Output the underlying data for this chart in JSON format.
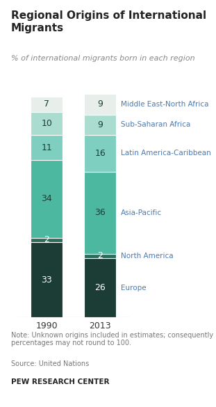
{
  "title": "Regional Origins of International\nMigrants",
  "subtitle": "% of international migrants born in each region",
  "years": [
    "1990",
    "2013"
  ],
  "regions": [
    "Europe",
    "North America",
    "Asia-Pacific",
    "Latin America-Caribbean",
    "Sub-Saharan Africa",
    "Middle East-North Africa"
  ],
  "values_1990": [
    33,
    2,
    34,
    11,
    10,
    7
  ],
  "values_2013": [
    26,
    2,
    36,
    16,
    9,
    9
  ],
  "colors": [
    "#1b3d35",
    "#2d6b5a",
    "#4db8a0",
    "#7ecfc0",
    "#aaddd0",
    "#e8eeea"
  ],
  "text_colors": [
    "white",
    "white",
    "#1b3d35",
    "#1b3d35",
    "#1b3d35",
    "#1b3d35"
  ],
  "region_label_color": "#4a7ab5",
  "note": "Note: Unknown origins included in estimates; consequently\npercentages may not round to 100.",
  "source": "Source: United Nations",
  "footer": "PEW RESEARCH CENTER",
  "background_color": "#ffffff",
  "bar_width": 0.6,
  "title_fontsize": 11,
  "subtitle_fontsize": 8,
  "label_fontsize": 9,
  "note_fontsize": 7,
  "footer_fontsize": 7.5,
  "axis_label_fontsize": 9
}
